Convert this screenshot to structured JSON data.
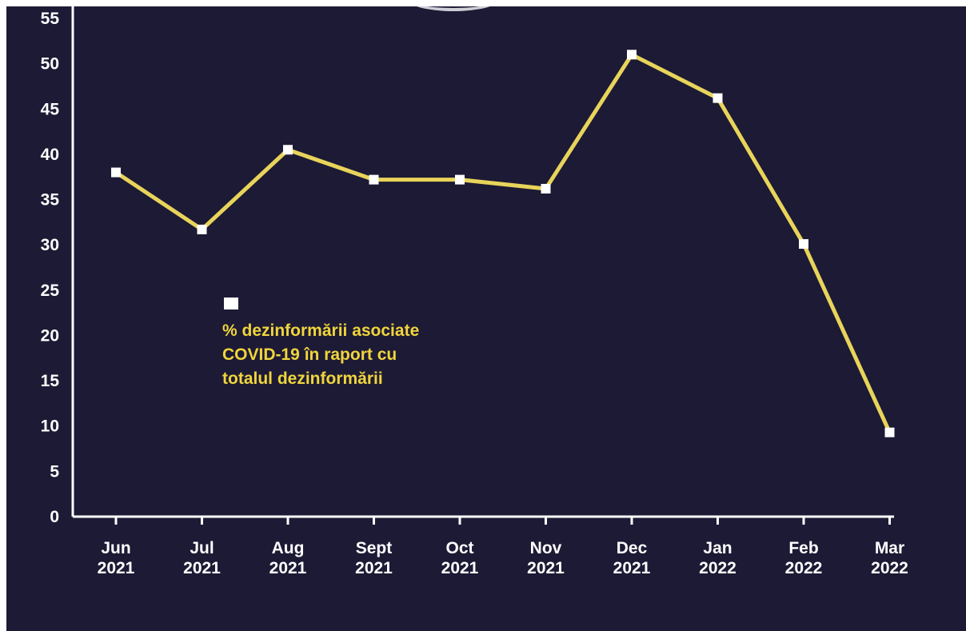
{
  "chart_data": {
    "type": "line",
    "categories": [
      [
        "Jun",
        "2021"
      ],
      [
        "Jul",
        "2021"
      ],
      [
        "Aug",
        "2021"
      ],
      [
        "Sept",
        "2021"
      ],
      [
        "Oct",
        "2021"
      ],
      [
        "Nov",
        "2021"
      ],
      [
        "Dec",
        "2021"
      ],
      [
        "Jan",
        "2022"
      ],
      [
        "Feb",
        "2022"
      ],
      [
        "Mar",
        "2022"
      ]
    ],
    "series": [
      {
        "name": "% dezinformării asociate COVID-19 în raport cu totalul dezinformării",
        "values": [
          38,
          31.7,
          40.5,
          37.2,
          37.2,
          36.2,
          51,
          46.2,
          30.1,
          9.3
        ]
      }
    ],
    "title": "",
    "xlabel": "",
    "ylabel": "",
    "ylim": [
      0,
      55
    ],
    "yticks": [
      0,
      5,
      10,
      15,
      20,
      25,
      30,
      35,
      40,
      45,
      50,
      55
    ],
    "grid": false,
    "legend_position": "inside-center-left",
    "colors": {
      "background": "#1d1a35",
      "line": "#e8d45a",
      "marker": "#ffffff",
      "axis": "#ffffff",
      "legend_text": "#f0d53c"
    }
  },
  "legend": {
    "lines": [
      "% dezinformării asociate",
      "COVID-19 în raport cu",
      "totalul dezinformării"
    ]
  }
}
